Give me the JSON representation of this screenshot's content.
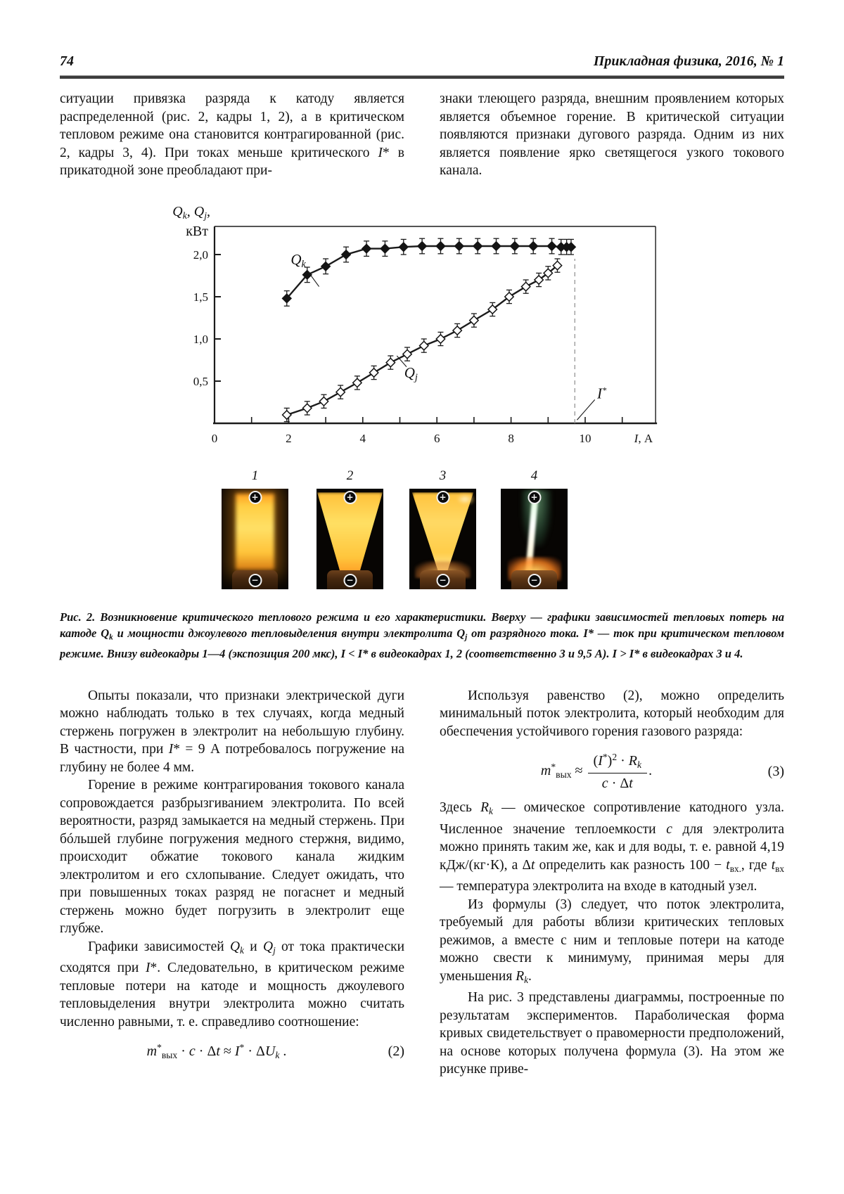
{
  "page": {
    "number": "74",
    "journal": "Прикладная физика, 2016, № 1"
  },
  "top_text": {
    "left": [
      "ситуации привязка разряда к катоду является распределенной (рис. 2, кадры 1, 2), а в критическом тепловом режиме она становится контрагированной (рис. 2, кадры 3, 4). При токах меньше критического ",
      {
        "t": "I",
        "s": "i"
      },
      "* в прикатодной зоне преобладают при-"
    ],
    "right": [
      "знаки тлеющего разряда, внешним проявлением которых является объемное горение. В критической ситуации появляются признаки дугового разряда. Одним из них является появление ярко светящегося узкого токового канала."
    ]
  },
  "chart_data": {
    "type": "line",
    "title": "",
    "y_axis": {
      "label_line1": [
        {
          "t": "Q",
          "s": "i"
        },
        {
          "t": "k",
          "s": "sub i"
        },
        ", ",
        {
          "t": "Q",
          "s": "i"
        },
        {
          "t": "j",
          "s": "sub i"
        },
        ","
      ],
      "label_line2": "кВт",
      "ticks": [
        {
          "v": 0.5,
          "label": "0,5"
        },
        {
          "v": 1.0,
          "label": "1,0"
        },
        {
          "v": 1.5,
          "label": "1,5"
        },
        {
          "v": 2.0,
          "label": "2,0"
        }
      ],
      "range": [
        0,
        2.33
      ]
    },
    "x_axis": {
      "label": [
        {
          "t": "I",
          "s": "i"
        },
        ", А"
      ],
      "ticks": [
        {
          "v": 0,
          "label": "0"
        },
        {
          "v": 2,
          "label": "2"
        },
        {
          "v": 4,
          "label": "4"
        },
        {
          "v": 6,
          "label": "6"
        },
        {
          "v": 8,
          "label": "8"
        },
        {
          "v": 10,
          "label": "10"
        }
      ],
      "minor_ticks": [
        1,
        2,
        3,
        4,
        5,
        6,
        7,
        8,
        9,
        10,
        11
      ],
      "range": [
        0,
        11.9
      ]
    },
    "grid": false,
    "critical_line": {
      "x": 9.72,
      "y_top": 1.95,
      "style": "dashed"
    },
    "series": [
      {
        "name": "Qk",
        "marker": "filled-diamond",
        "error": 0.09,
        "points": [
          [
            1.95,
            1.48
          ],
          [
            2.5,
            1.76
          ],
          [
            3.0,
            1.86
          ],
          [
            3.55,
            2.0
          ],
          [
            4.1,
            2.07
          ],
          [
            4.6,
            2.07
          ],
          [
            5.1,
            2.09
          ],
          [
            5.6,
            2.1
          ],
          [
            6.1,
            2.1
          ],
          [
            6.6,
            2.1
          ],
          [
            7.1,
            2.1
          ],
          [
            7.6,
            2.1
          ],
          [
            8.1,
            2.1
          ],
          [
            8.6,
            2.1
          ],
          [
            9.1,
            2.1
          ],
          [
            9.35,
            2.09
          ],
          [
            9.5,
            2.09
          ],
          [
            9.62,
            2.09
          ]
        ]
      },
      {
        "name": "Qj",
        "marker": "open-diamond",
        "error": 0.08,
        "points": [
          [
            1.95,
            0.1
          ],
          [
            2.5,
            0.18
          ],
          [
            2.95,
            0.26
          ],
          [
            3.4,
            0.37
          ],
          [
            3.85,
            0.48
          ],
          [
            4.3,
            0.6
          ],
          [
            4.75,
            0.72
          ],
          [
            5.2,
            0.82
          ],
          [
            5.65,
            0.92
          ],
          [
            6.1,
            1.0
          ],
          [
            6.55,
            1.1
          ],
          [
            7.0,
            1.22
          ],
          [
            7.5,
            1.35
          ],
          [
            7.95,
            1.5
          ],
          [
            8.4,
            1.62
          ],
          [
            8.75,
            1.7
          ],
          [
            9.0,
            1.78
          ],
          [
            9.25,
            1.87
          ]
        ]
      }
    ],
    "annotations": [
      {
        "id": "label-series-qk",
        "segs": [
          {
            "t": "Q",
            "s": "i"
          },
          {
            "t": "k",
            "s": "sub i"
          }
        ],
        "x": 2.26,
        "y": 1.92,
        "leader": [
          [
            2.52,
            1.8
          ],
          [
            2.82,
            1.62
          ]
        ]
      },
      {
        "id": "label-series-qj",
        "segs": [
          {
            "t": "Q",
            "s": "i"
          },
          {
            "t": "j",
            "s": "sub i"
          }
        ],
        "x": 5.3,
        "y": 0.58,
        "leader": [
          [
            4.92,
            0.8
          ],
          [
            5.18,
            0.67
          ]
        ]
      },
      {
        "id": "label-critical-current",
        "segs": [
          {
            "t": "I",
            "s": "i"
          },
          {
            "t": "*",
            "s": "sup"
          }
        ],
        "x": 10.45,
        "y": 0.35,
        "leader": [
          [
            9.78,
            0.04
          ],
          [
            10.26,
            0.28
          ]
        ]
      }
    ]
  },
  "figure": {
    "frame_numbers": [
      "1",
      "2",
      "3",
      "4"
    ],
    "electrode_plus": "+",
    "electrode_minus": "−",
    "caption": [
      "Рис. 2. Возникновение критического теплового режима и его характеристики. Вверху — графики зависимостей тепловых потерь на катоде ",
      {
        "t": "Q",
        "s": "i"
      },
      {
        "t": "k",
        "s": "sub"
      },
      " и мощности джоулевого тепловыделения внутри электролита ",
      {
        "t": "Q",
        "s": "i"
      },
      {
        "t": "j",
        "s": "sub"
      },
      " от разрядного тока. ",
      {
        "t": "I",
        "s": "i"
      },
      "* — ток при критическом тепловом режиме. Внизу  видеокадры  ",
      {
        "t": "1—4",
        "s": "i"
      },
      " (экспозиция 200 мкс),  ",
      {
        "t": "I",
        "s": "i"
      },
      " < ",
      {
        "t": "I",
        "s": "i"
      },
      "* в видеокадрах ",
      {
        "t": "1, 2",
        "s": "i"
      },
      " (соответственно 3 и 9,5 А). ",
      {
        "t": "I",
        "s": "i"
      },
      " > ",
      {
        "t": "I",
        "s": "i"
      },
      "* в видеокадрах ",
      {
        "t": "3",
        "s": "i"
      },
      " и ",
      {
        "t": "4",
        "s": "i"
      },
      "."
    ]
  },
  "body_left": {
    "p1": [
      "Опыты показали, что признаки электрической дуги можно наблюдать только в тех случаях, когда медный стержень погружен в электролит на небольшую глубину. В частности, при ",
      {
        "t": "I",
        "s": "i"
      },
      "* = 9 А потребовалось погружение на глубину не более 4 мм."
    ],
    "p2": [
      "Горение в режиме контрагирования токового канала сопровождается разбрызгиванием электролита. По всей вероятности, разряд замыкается на медный стержень. При бóльшей глубине погружения медного стержня, видимо, происходит обжатие токового канала жидким электролитом и его схлопывание. Следует ожидать, что при повышенных токах разряд не погаснет и медный стержень можно будет погрузить в электролит еще глубже."
    ],
    "p3": [
      "Графики зависимостей ",
      {
        "t": "Q",
        "s": "i"
      },
      {
        "t": "k",
        "s": "sub i"
      },
      " и ",
      {
        "t": "Q",
        "s": "i"
      },
      {
        "t": "j",
        "s": "sub i"
      },
      " от тока практически сходятся при ",
      {
        "t": "I",
        "s": "i"
      },
      "*. Следовательно, в критическом режиме тепловые потери на катоде и мощность джоулевого тепловыделения внутри электролита можно считать численно равными, т. е. справедливо соотношение:"
    ],
    "eq2": {
      "body": [
        {
          "t": "m",
          "s": "i"
        },
        {
          "t": "*",
          "s": "sup"
        },
        {
          "t": "вых",
          "s": "sub"
        },
        " · ",
        {
          "t": "c",
          "s": "i"
        },
        " · Δ",
        {
          "t": "t",
          "s": "i"
        },
        " ≈ ",
        {
          "t": "I",
          "s": "i"
        },
        {
          "t": "*",
          "s": "sup"
        },
        " · Δ",
        {
          "t": "U",
          "s": "i"
        },
        {
          "t": "k",
          "s": "sub i"
        },
        " ."
      ],
      "number": "(2)"
    }
  },
  "body_right": {
    "p1": [
      "Используя равенство (2), можно определить минимальный поток электролита, который необходим для обеспечения устойчивого горения газового разряда:"
    ],
    "eq3": {
      "lhs": [
        {
          "t": "m",
          "s": "i"
        },
        {
          "t": "*",
          "s": "sup"
        },
        {
          "t": "вых",
          "s": "sub"
        },
        " ≈ "
      ],
      "numerator": [
        "(",
        {
          "t": "I",
          "s": "i"
        },
        {
          "t": "*",
          "s": "sup"
        },
        ")",
        {
          "t": "2",
          "s": "sup"
        },
        " · ",
        {
          "t": "R",
          "s": "i"
        },
        {
          "t": "k",
          "s": "sub i"
        }
      ],
      "denominator": [
        {
          "t": "c",
          "s": "i"
        },
        " · Δ",
        {
          "t": "t",
          "s": "i"
        }
      ],
      "tail": ".",
      "number": "(3)"
    },
    "p2": [
      "Здесь ",
      {
        "t": "R",
        "s": "i"
      },
      {
        "t": "k",
        "s": "sub i"
      },
      " — омическое сопротивление катодного узла. Численное значение теплоемкости ",
      {
        "t": "c",
        "s": "i"
      },
      " для электролита можно принять таким же, как и для воды, т. е. равной 4,19 кДж/(кг·К), а Δ",
      {
        "t": "t",
        "s": "i"
      },
      " определить как разность 100 − ",
      {
        "t": "t",
        "s": "i"
      },
      {
        "t": "вх.",
        "s": "sub"
      },
      ", где ",
      {
        "t": "t",
        "s": "i"
      },
      {
        "t": "вх",
        "s": "sub"
      },
      " — температура электролита на входе в катодный узел."
    ],
    "p3": [
      "Из формулы (3) следует, что поток электролита, требуемый для работы вблизи критических тепловых режимов, а вместе с ним и тепловые потери на катоде можно свести к минимуму, принимая меры для уменьшения ",
      {
        "t": "R",
        "s": "i"
      },
      {
        "t": "k",
        "s": "sub i"
      },
      "."
    ],
    "p4": [
      "На рис. 3 представлены диаграммы, построенные по результатам экспериментов. Параболическая форма кривых свидетельствует о правомерности предположений, на основе которых получена формула (3). На этом же рисунке приве-"
    ]
  }
}
